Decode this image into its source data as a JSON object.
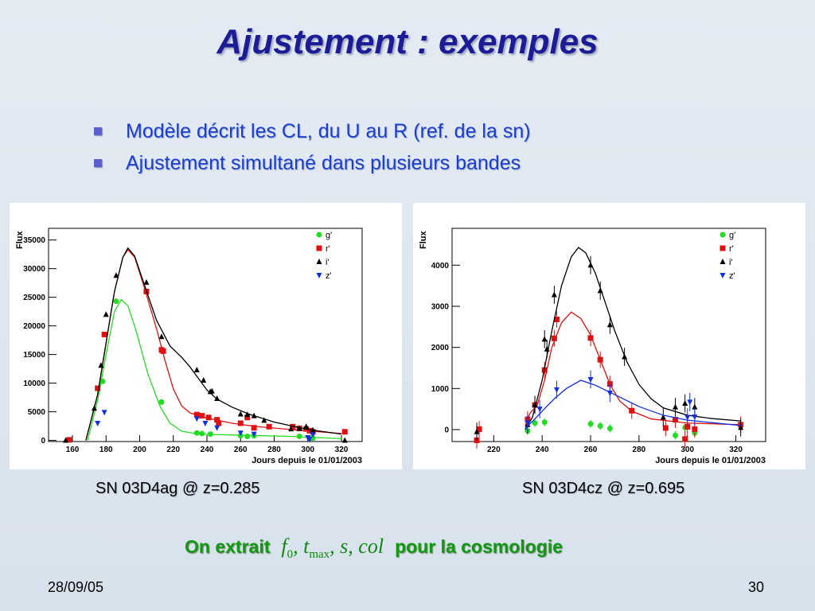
{
  "title": "Ajustement : exemples",
  "bullets": [
    "Modèle décrit les CL, du U au R (ref. de la sn)",
    "Ajustement simultané dans plusieurs bandes"
  ],
  "captions": [
    "SN 03D4ag @ z=0.285",
    "SN 03D4cz @ z=0.695"
  ],
  "extract": {
    "prefix": "On extrait",
    "math_f": "f",
    "math_f_sub": "0",
    "math_t": ", t",
    "math_t_sub": "max",
    "math_rest": ", s, col",
    "suffix": "pour la cosmologie"
  },
  "footer": {
    "date": "28/09/05",
    "page": "30"
  },
  "colors": {
    "g": "#22dd22",
    "r": "#e01010",
    "i": "#000000",
    "z": "#1030e0"
  },
  "chart_data": [
    {
      "type": "scatter",
      "ylabel": "Flux",
      "xlabel": "Jours depuis le 01/01/2003",
      "xlim": [
        145.8,
        332.3
      ],
      "ylim": [
        -200,
        37040
      ],
      "xticks": [
        160,
        180,
        200,
        220,
        240,
        260,
        280,
        300,
        320
      ],
      "yticks": [
        0,
        5000,
        10000,
        15000,
        20000,
        25000,
        30000,
        35000
      ],
      "legend": [
        "g'",
        "r'",
        "i'",
        "z'"
      ],
      "errors": false,
      "series": [
        {
          "band": "g",
          "marker": "circle",
          "points": [
            [
              178,
              10300
            ],
            [
              186,
              24300
            ],
            [
              213,
              6700
            ],
            [
              234,
              1300
            ],
            [
              237,
              1200
            ],
            [
              242,
              1100
            ],
            [
              260,
              800
            ],
            [
              264,
              700
            ],
            [
              268,
              800
            ],
            [
              295,
              700
            ],
            [
              302,
              400
            ],
            [
              303,
              400
            ]
          ],
          "fit": [
            [
              169,
              0
            ],
            [
              175,
              7000
            ],
            [
              180,
              15000
            ],
            [
              185,
              22500
            ],
            [
              189,
              24600
            ],
            [
              193,
              23500
            ],
            [
              198,
              19000
            ],
            [
              205,
              11500
            ],
            [
              212,
              6000
            ],
            [
              218,
              3000
            ],
            [
              225,
              1600
            ],
            [
              235,
              1100
            ],
            [
              260,
              900
            ],
            [
              290,
              700
            ],
            [
              320,
              300
            ]
          ]
        },
        {
          "band": "r",
          "marker": "square",
          "points": [
            [
              158,
              100
            ],
            [
              175,
              9100
            ],
            [
              179,
              18500
            ],
            [
              204,
              26000
            ],
            [
              213,
              15800
            ],
            [
              214,
              15600
            ],
            [
              234,
              4500
            ],
            [
              237,
              4300
            ],
            [
              241,
              4000
            ],
            [
              246,
              3600
            ],
            [
              247,
              3000
            ],
            [
              260,
              3000
            ],
            [
              264,
              4000
            ],
            [
              268,
              2200
            ],
            [
              277,
              2400
            ],
            [
              291,
              2400
            ],
            [
              295,
              2100
            ],
            [
              299,
              2000
            ],
            [
              301,
              1700
            ],
            [
              303,
              1500
            ],
            [
              322,
              1500
            ]
          ],
          "fit": [
            [
              168,
              0
            ],
            [
              175,
              8000
            ],
            [
              180,
              17000
            ],
            [
              185,
              26000
            ],
            [
              190,
              32000
            ],
            [
              193,
              33300
            ],
            [
              197,
              32000
            ],
            [
              203,
              26500
            ],
            [
              210,
              19500
            ],
            [
              215,
              14000
            ],
            [
              220,
              9000
            ],
            [
              225,
              6000
            ],
            [
              230,
              4800
            ],
            [
              240,
              3900
            ],
            [
              255,
              3000
            ],
            [
              270,
              2400
            ],
            [
              290,
              1900
            ],
            [
              320,
              1200
            ]
          ]
        },
        {
          "band": "i",
          "marker": "triangle-up",
          "points": [
            [
              156,
              0
            ],
            [
              173,
              5600
            ],
            [
              177,
              13100
            ],
            [
              180,
              22000
            ],
            [
              186,
              28800
            ],
            [
              204,
              27600
            ],
            [
              213,
              18100
            ],
            [
              234,
              12300
            ],
            [
              238,
              10500
            ],
            [
              242,
              8500
            ],
            [
              243,
              8600
            ],
            [
              246,
              7300
            ],
            [
              260,
              4600
            ],
            [
              264,
              4500
            ],
            [
              268,
              4300
            ],
            [
              274,
              3500
            ],
            [
              290,
              2000
            ],
            [
              295,
              2100
            ],
            [
              299,
              2400
            ],
            [
              303,
              1800
            ],
            [
              322,
              0
            ]
          ],
          "fit": [
            [
              168,
              0
            ],
            [
              175,
              8000
            ],
            [
              180,
              17000
            ],
            [
              185,
              26000
            ],
            [
              190,
              32000
            ],
            [
              193,
              33600
            ],
            [
              197,
              32200
            ],
            [
              203,
              27000
            ],
            [
              210,
              21000
            ],
            [
              218,
              16500
            ],
            [
              225,
              14500
            ],
            [
              230,
              12800
            ],
            [
              235,
              10800
            ],
            [
              240,
              8800
            ],
            [
              246,
              7200
            ],
            [
              255,
              5800
            ],
            [
              265,
              4600
            ],
            [
              280,
              3200
            ],
            [
              300,
              1900
            ],
            [
              320,
              1100
            ]
          ]
        },
        {
          "band": "z",
          "marker": "triangle-down",
          "points": [
            [
              175,
              3000
            ],
            [
              179,
              4900
            ],
            [
              234,
              3800
            ],
            [
              239,
              3000
            ],
            [
              246,
              2200
            ],
            [
              260,
              1300
            ],
            [
              268,
              1100
            ],
            [
              300,
              500
            ],
            [
              301,
              200
            ],
            [
              303,
              1000
            ]
          ],
          "fit": []
        }
      ]
    },
    {
      "type": "scatter",
      "ylabel": "Flux",
      "xlabel": "Jours depuis le 01/01/2003",
      "xlim": [
        202.8,
        332.3
      ],
      "ylim": [
        -290,
        4896
      ],
      "xticks": [
        220,
        240,
        260,
        280,
        300,
        320
      ],
      "yticks": [
        0,
        1000,
        2000,
        3000,
        4000
      ],
      "legend": [
        "g'",
        "r'",
        "i'",
        "z'"
      ],
      "errors": true,
      "series": [
        {
          "band": "g",
          "marker": "circle",
          "err": 100,
          "points": [
            [
              234,
              -30
            ],
            [
              237,
              160
            ],
            [
              241,
              180
            ],
            [
              260,
              140
            ],
            [
              264,
              90
            ],
            [
              268,
              30
            ],
            [
              295,
              -140
            ],
            [
              299,
              50
            ],
            [
              303,
              -80
            ]
          ],
          "fit": []
        },
        {
          "band": "r",
          "marker": "square",
          "err": 200,
          "points": [
            [
              213,
              -260
            ],
            [
              214,
              10
            ],
            [
              234,
              250
            ],
            [
              237,
              600
            ],
            [
              241,
              1450
            ],
            [
              245,
              2220
            ],
            [
              246,
              2680
            ],
            [
              260,
              2230
            ],
            [
              264,
              1700
            ],
            [
              268,
              1110
            ],
            [
              277,
              460
            ],
            [
              291,
              40
            ],
            [
              295,
              240
            ],
            [
              299,
              -230
            ],
            [
              300,
              70
            ],
            [
              303,
              10
            ],
            [
              322,
              120
            ]
          ],
          "fit": [
            [
              233,
              100
            ],
            [
              235,
              400
            ],
            [
              238,
              600
            ],
            [
              241,
              1200
            ],
            [
              244,
              2000
            ],
            [
              248,
              2600
            ],
            [
              252,
              2860
            ],
            [
              256,
              2700
            ],
            [
              260,
              2300
            ],
            [
              264,
              1700
            ],
            [
              268,
              1100
            ],
            [
              272,
              700
            ],
            [
              277,
              450
            ],
            [
              285,
              260
            ],
            [
              300,
              160
            ],
            [
              322,
              120
            ]
          ]
        },
        {
          "band": "i",
          "marker": "triangle-up",
          "err": 220,
          "points": [
            [
              213,
              -50
            ],
            [
              234,
              120
            ],
            [
              237,
              600
            ],
            [
              241,
              2200
            ],
            [
              242,
              1960
            ],
            [
              245,
              3280
            ],
            [
              260,
              4000
            ],
            [
              264,
              3380
            ],
            [
              268,
              2550
            ],
            [
              274,
              1770
            ],
            [
              290,
              300
            ],
            [
              295,
              550
            ],
            [
              299,
              640
            ],
            [
              303,
              550
            ],
            [
              322,
              50
            ]
          ],
          "fit": [
            [
              233,
              0
            ],
            [
              236,
              300
            ],
            [
              240,
              1200
            ],
            [
              244,
              2400
            ],
            [
              248,
              3500
            ],
            [
              252,
              4200
            ],
            [
              255,
              4430
            ],
            [
              258,
              4300
            ],
            [
              262,
              3800
            ],
            [
              266,
              3100
            ],
            [
              270,
              2400
            ],
            [
              275,
              1650
            ],
            [
              280,
              1100
            ],
            [
              285,
              750
            ],
            [
              290,
              530
            ],
            [
              300,
              350
            ],
            [
              310,
              270
            ],
            [
              322,
              210
            ]
          ]
        },
        {
          "band": "z",
          "marker": "triangle-down",
          "err": 220,
          "points": [
            [
              234,
              160
            ],
            [
              239,
              500
            ],
            [
              246,
              970
            ],
            [
              260,
              1220
            ],
            [
              268,
              890
            ],
            [
              300,
              300
            ],
            [
              301,
              670
            ],
            [
              303,
              310
            ]
          ],
          "fit": [
            [
              233,
              30
            ],
            [
              236,
              200
            ],
            [
              240,
              450
            ],
            [
              245,
              750
            ],
            [
              250,
              1000
            ],
            [
              256,
              1200
            ],
            [
              262,
              1080
            ],
            [
              270,
              850
            ],
            [
              280,
              560
            ],
            [
              290,
              350
            ],
            [
              300,
              230
            ],
            [
              322,
              100
            ]
          ]
        }
      ]
    }
  ]
}
